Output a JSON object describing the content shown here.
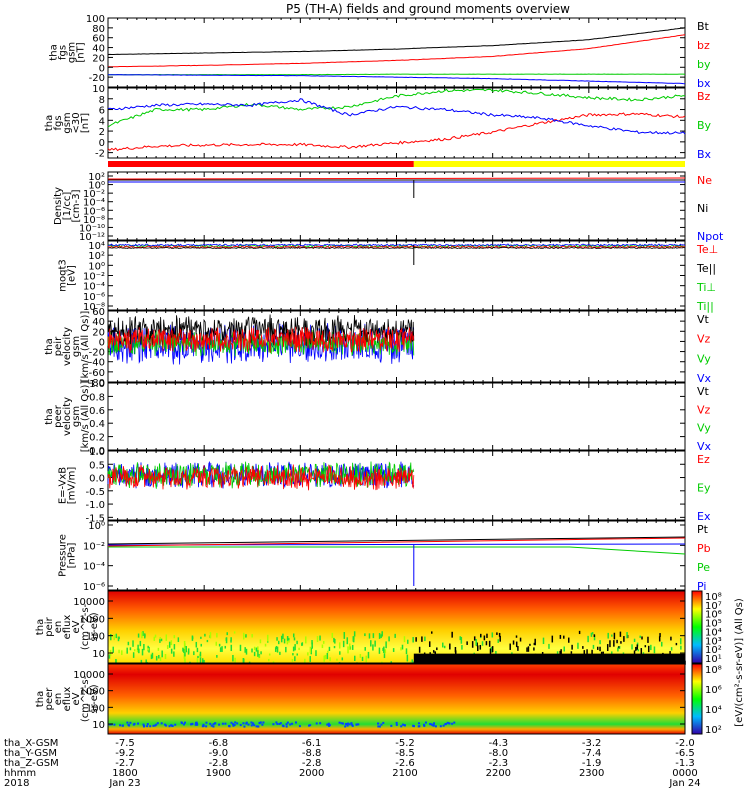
{
  "title": "P5 (TH-A) fields and ground moments overview",
  "colors": {
    "black": "#000000",
    "red": "#ff0000",
    "green": "#00cc00",
    "blue": "#0000ff",
    "yellow": "#ffff00"
  },
  "chart_data": [
    {
      "id": "fgs",
      "type": "line",
      "ylabel": [
        "tha",
        "fgs",
        "gsm",
        "[nT]"
      ],
      "ylim": [
        -40,
        100
      ],
      "yticks": [
        "-20",
        "0",
        "20",
        "40",
        "60",
        "80",
        "100"
      ],
      "ytick_values": [
        -20,
        0,
        20,
        40,
        60,
        80,
        100
      ],
      "x": [
        "1800",
        "1900",
        "2000",
        "2100",
        "2200",
        "2300",
        "0000"
      ],
      "series": [
        {
          "name": "Bt",
          "color": "black",
          "values": [
            26,
            29,
            32,
            37,
            44,
            56,
            80
          ]
        },
        {
          "name": "bz",
          "color": "red",
          "values": [
            1,
            4,
            8,
            14,
            22,
            38,
            66
          ]
        },
        {
          "name": "by",
          "color": "green",
          "values": [
            -15,
            -15,
            -15,
            -14,
            -14,
            -14,
            -14
          ]
        },
        {
          "name": "bx",
          "color": "blue",
          "values": [
            -15,
            -16,
            -17,
            -20,
            -23,
            -28,
            -33
          ]
        }
      ]
    },
    {
      "id": "fgs_dsl",
      "type": "line",
      "ylabel": [
        "tha",
        "fgs",
        "gsm",
        "<30",
        "[nT]"
      ],
      "ylim": [
        -3,
        10
      ],
      "yticks": [
        "-2",
        "0",
        "2",
        "4",
        "6",
        "8",
        "10"
      ],
      "ytick_values": [
        -2,
        0,
        2,
        4,
        6,
        8,
        10
      ],
      "x": [
        "1800",
        "1830",
        "1900",
        "1930",
        "2000",
        "2030",
        "2100",
        "2130",
        "2200",
        "2230",
        "2300",
        "2330",
        "0000"
      ],
      "series": [
        {
          "name": "Bz",
          "color": "red",
          "values": [
            -1.5,
            -0.8,
            -0.6,
            -0.5,
            -0.5,
            -1.0,
            -0.2,
            0.5,
            1.8,
            3.5,
            5.0,
            5.2,
            4.6
          ]
        },
        {
          "name": "By",
          "color": "green",
          "values": [
            3.0,
            6.0,
            6.0,
            7.0,
            6.0,
            6.5,
            8.5,
            9.5,
            9.6,
            9.0,
            8.2,
            7.8,
            8.6
          ]
        },
        {
          "name": "Bx",
          "color": "blue",
          "values": [
            6.0,
            6.8,
            7.0,
            6.8,
            7.8,
            5.0,
            6.5,
            6.0,
            5.0,
            4.4,
            3.0,
            1.8,
            1.6
          ]
        }
      ]
    },
    {
      "id": "density",
      "type": "line",
      "ylabel": [
        "Density",
        "[1/cc]",
        "[cm-3]"
      ],
      "yticks": [
        "10²",
        "10⁰",
        "10⁻²",
        "10⁻⁴",
        "10⁻⁶",
        "10⁻⁸",
        "10⁻¹⁰",
        "10⁻¹²"
      ],
      "yscale": "log",
      "series": [
        {
          "name": "Ne",
          "color": "red"
        },
        {
          "name": "Ni",
          "color": "black"
        },
        {
          "name": "Npot",
          "color": "blue"
        }
      ]
    },
    {
      "id": "temperature",
      "type": "line",
      "ylabel": [
        "moqt3",
        "[eV]"
      ],
      "yticks": [
        "10⁴",
        "10²",
        "10⁰",
        "10⁻²",
        "10⁻⁴",
        "10⁻⁶",
        "10⁻⁸"
      ],
      "yscale": "log",
      "series": [
        {
          "name": "Te⊥",
          "color": "red"
        },
        {
          "name": "Te||",
          "color": "black"
        },
        {
          "name": "Ti⊥",
          "color": "green"
        },
        {
          "name": "Ti||",
          "color": "green"
        }
      ]
    },
    {
      "id": "peir_velocity",
      "type": "line",
      "ylabel": [
        "tha",
        "peir",
        "velocity",
        "gsm",
        "[km/s (All Qs)]"
      ],
      "ylim": [
        -80,
        60
      ],
      "yticks": [
        "60",
        "40",
        "20",
        "0",
        "-20",
        "-40",
        "-60",
        "-80"
      ],
      "ytick_values": [
        60,
        40,
        20,
        0,
        -20,
        -40,
        -60,
        -80
      ],
      "series": [
        {
          "name": "Vt",
          "color": "black"
        },
        {
          "name": "Vz",
          "color": "red"
        },
        {
          "name": "Vy",
          "color": "green"
        },
        {
          "name": "Vx",
          "color": "blue"
        }
      ]
    },
    {
      "id": "peer_velocity",
      "type": "line",
      "ylabel": [
        "tha",
        "peer",
        "velocity",
        "gsm",
        "[km/s (All Qs)]"
      ],
      "ylim": [
        0,
        1
      ],
      "yticks": [
        "1.0",
        "0.8",
        "0.6",
        "0.4",
        "0.2",
        "0.0"
      ],
      "ytick_values": [
        1.0,
        0.8,
        0.6,
        0.4,
        0.2,
        0.0
      ],
      "series": [
        {
          "name": "Vt",
          "color": "black"
        },
        {
          "name": "Vz",
          "color": "red"
        },
        {
          "name": "Vy",
          "color": "green"
        },
        {
          "name": "Vx",
          "color": "blue"
        }
      ]
    },
    {
      "id": "efield",
      "type": "line",
      "ylabel": [
        "E=-VxB",
        "[mV/m]"
      ],
      "ylim": [
        -1.6,
        1.0
      ],
      "yticks": [
        "1.0",
        "0.5",
        "0.0",
        "-0.5",
        "-1.0",
        "-1.5"
      ],
      "ytick_values": [
        1.0,
        0.5,
        0.0,
        -0.5,
        -1.0,
        -1.5
      ],
      "series": [
        {
          "name": "Ez",
          "color": "red"
        },
        {
          "name": "Ey",
          "color": "green"
        },
        {
          "name": "Ex",
          "color": "blue"
        }
      ]
    },
    {
      "id": "pressure",
      "type": "line",
      "ylabel": [
        "Pressure",
        "[nPa]"
      ],
      "yticks": [
        "10⁰",
        "10⁻²",
        "10⁻⁴",
        "10⁻⁶"
      ],
      "yscale": "log",
      "series": [
        {
          "name": "Pt",
          "color": "black"
        },
        {
          "name": "Pb",
          "color": "red"
        },
        {
          "name": "Pe",
          "color": "green"
        },
        {
          "name": "Pi",
          "color": "blue"
        }
      ]
    },
    {
      "id": "peir_spec",
      "type": "heatmap",
      "ylabel": [
        "tha",
        "peir",
        "en",
        "eflux",
        "eV",
        "(cm^2-s-",
        "sr-eV)"
      ],
      "yticks": [
        "10000",
        "1000",
        "100",
        "10"
      ],
      "yscale": "log",
      "colorbar_ticks": [
        "10⁸",
        "10⁷",
        "10⁶",
        "10⁵",
        "10⁴",
        "10³",
        "10²",
        "10¹"
      ]
    },
    {
      "id": "peer_spec",
      "type": "heatmap",
      "ylabel": [
        "tha",
        "peer",
        "en",
        "eflux",
        "eV",
        "(cm^2-s-",
        "sr-eV)"
      ],
      "yticks": [
        "10000",
        "1000",
        "100",
        "10"
      ],
      "yscale": "log",
      "colorbar_ticks": [
        "10⁸",
        "10⁶",
        "10⁴",
        "10²"
      ],
      "colorbar_label": "[eV/(cm²-s-sr-eV)] (All Qs)"
    }
  ],
  "xaxis": {
    "rows": [
      {
        "label": "tha_X-GSM",
        "values": [
          "-7.5",
          "-6.8",
          "-6.1",
          "-5.2",
          "-4.3",
          "-3.2",
          "-2.0"
        ]
      },
      {
        "label": "tha_Y-GSM",
        "values": [
          "-9.2",
          "-9.0",
          "-8.8",
          "-8.5",
          "-8.0",
          "-7.4",
          "-6.5"
        ]
      },
      {
        "label": "tha_Z-GSM",
        "values": [
          "-2.7",
          "-2.8",
          "-2.8",
          "-2.6",
          "-2.3",
          "-1.9",
          "-1.3"
        ]
      },
      {
        "label": "hhmm",
        "values": [
          "1800",
          "1900",
          "2000",
          "2100",
          "2200",
          "2300",
          "0000"
        ]
      }
    ],
    "date_left": "2018",
    "date_labels": [
      "Jan 23",
      "Jan 24"
    ]
  }
}
